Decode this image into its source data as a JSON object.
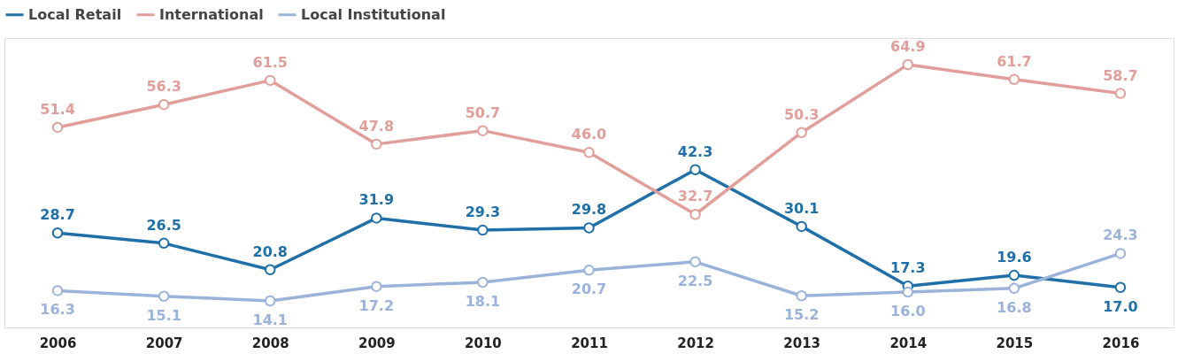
{
  "chart_data": {
    "type": "line",
    "categories": [
      "2006",
      "2007",
      "2008",
      "2009",
      "2010",
      "2011",
      "2012",
      "2013",
      "2014",
      "2015",
      "2016"
    ],
    "series": [
      {
        "name": "Local Retail",
        "color": "#1f6fa8",
        "values": [
          28.7,
          26.5,
          20.8,
          31.9,
          29.3,
          29.8,
          42.3,
          30.1,
          17.3,
          19.6,
          17.0
        ],
        "value_labels": [
          "28.7",
          "26.5",
          "20.8",
          "31.9",
          "29.3",
          "29.8",
          "42.3",
          "30.1",
          "17.3",
          "19.6",
          "17.0"
        ]
      },
      {
        "name": "International",
        "color": "#e29e98",
        "values": [
          51.4,
          56.3,
          61.5,
          47.8,
          50.7,
          46.0,
          32.7,
          50.3,
          64.9,
          61.7,
          58.7
        ],
        "value_labels": [
          "51.4",
          "56.3",
          "61.5",
          "47.8",
          "50.7",
          "46.0",
          "32.7",
          "50.3",
          "64.9",
          "61.7",
          "58.7"
        ]
      },
      {
        "name": "Local Institutional",
        "color": "#9bb3da",
        "values": [
          16.3,
          15.1,
          14.1,
          17.2,
          18.1,
          20.7,
          22.5,
          15.2,
          16.0,
          16.8,
          24.3
        ],
        "value_labels": [
          "16.3",
          "15.1",
          "14.1",
          "17.2",
          "18.1",
          "20.7",
          "22.5",
          "15.2",
          "16.0",
          "16.8",
          "24.3"
        ]
      }
    ],
    "legend": "top left",
    "marker": "circle",
    "grid": false,
    "line_style": "solid"
  }
}
